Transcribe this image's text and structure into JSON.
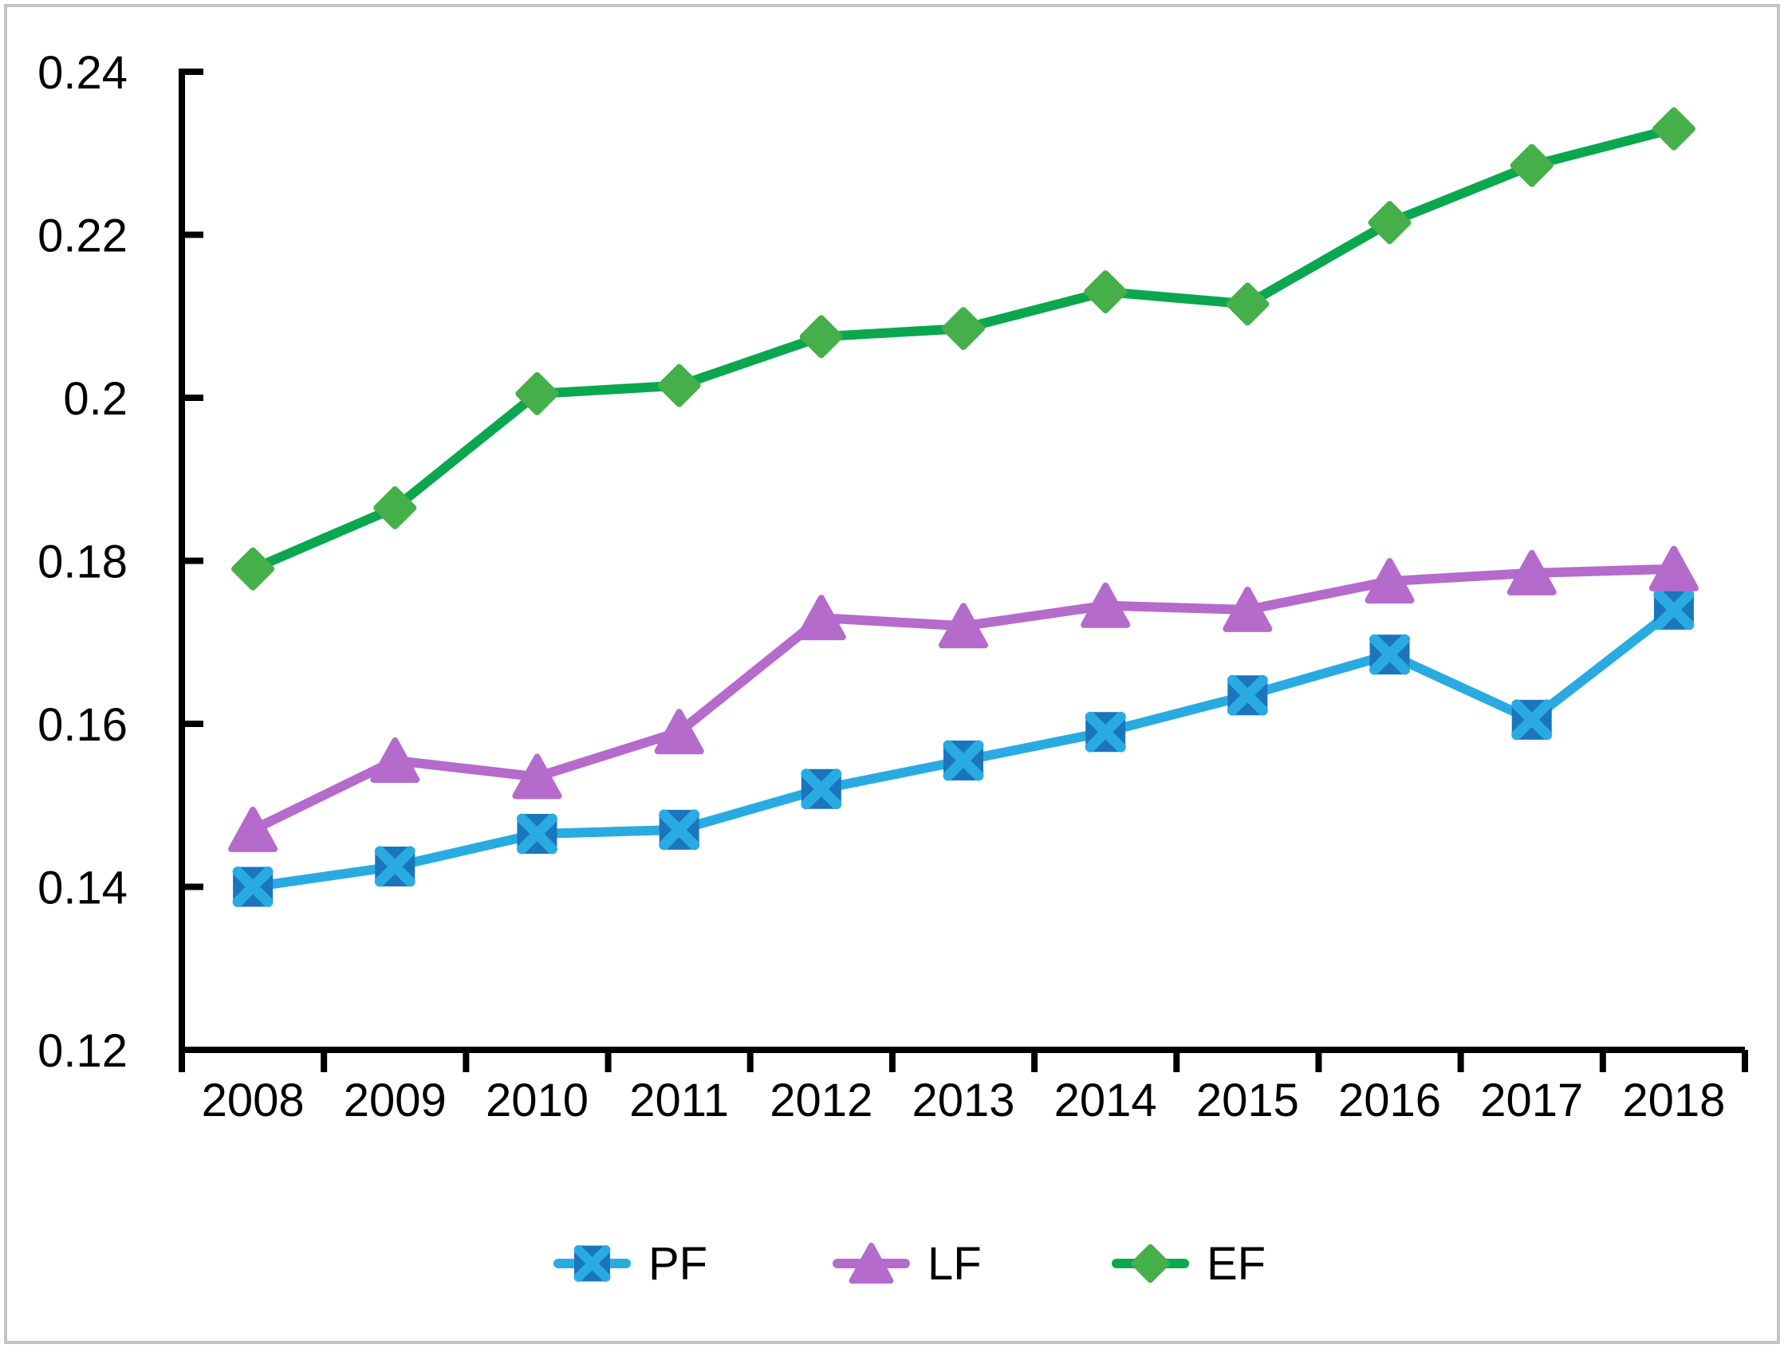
{
  "figure": {
    "background": "#ffffff",
    "border_color": "#c4c4c4",
    "axis_color": "#000000"
  },
  "chart_data": {
    "type": "line",
    "title": "",
    "xlabel": "",
    "ylabel": "",
    "grid": false,
    "legend_position": "bottom",
    "x_categories": [
      "2008",
      "2009",
      "2010",
      "2011",
      "2012",
      "2013",
      "2014",
      "2015",
      "2016",
      "2017",
      "2018"
    ],
    "ylim": [
      0.12,
      0.24
    ],
    "ytick_step": 0.02,
    "ytick_labels": [
      "0.24",
      "0.22",
      "0.2",
      "0.18",
      "0.16",
      "0.14",
      "0.12"
    ],
    "ytick_values": [
      0.24,
      0.22,
      0.2,
      0.18,
      0.16,
      0.14,
      0.12
    ],
    "series": [
      {
        "name": "PF",
        "marker": "square-x",
        "line_color": "#29ABE2",
        "marker_fill": "#1B75BC",
        "marker_accent": "#29ABE2",
        "values": [
          0.14,
          0.1425,
          0.1465,
          0.147,
          0.152,
          0.1555,
          0.159,
          0.1635,
          0.1685,
          0.1605,
          0.174
        ]
      },
      {
        "name": "LF",
        "marker": "triangle",
        "line_color": "#B46BCC",
        "marker_fill": "#B46BCC",
        "marker_accent": "#B46BCC",
        "values": [
          0.147,
          0.1555,
          0.1535,
          0.159,
          0.173,
          0.172,
          0.1745,
          0.174,
          0.1775,
          0.1785,
          0.179
        ]
      },
      {
        "name": "EF",
        "marker": "diamond",
        "line_color": "#0AA74F",
        "marker_fill": "#45AF49",
        "marker_accent": "#45AF49",
        "values": [
          0.179,
          0.1865,
          0.2005,
          0.2015,
          0.2075,
          0.2085,
          0.213,
          0.2115,
          0.2215,
          0.2285,
          0.233
        ]
      }
    ]
  }
}
